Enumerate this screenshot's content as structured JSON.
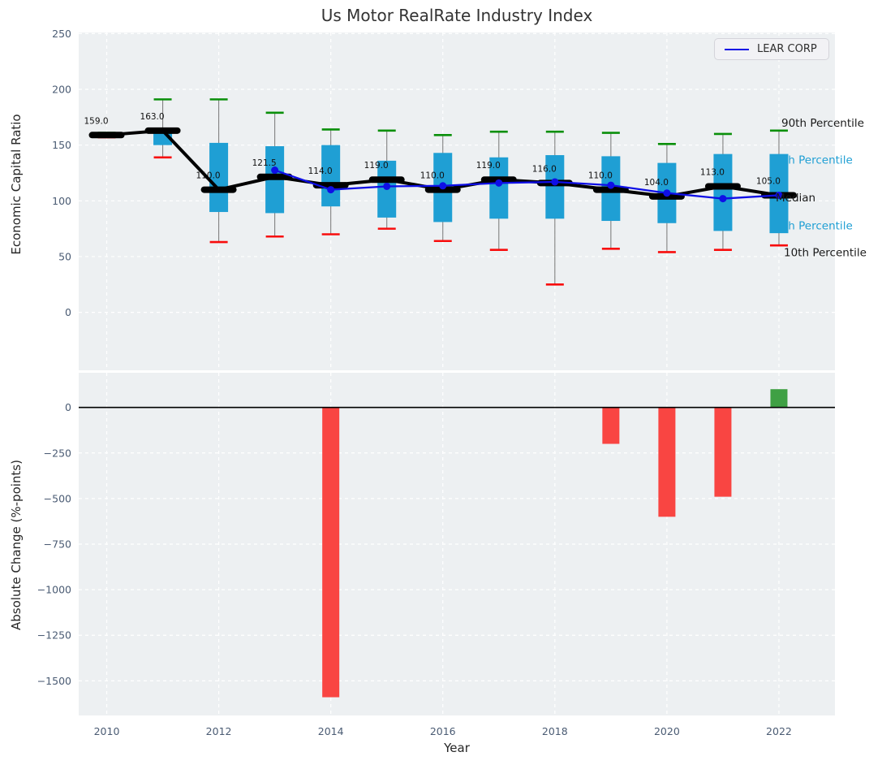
{
  "title": "Us Motor RealRate Industry Index",
  "legend": {
    "label": "LEAR CORP",
    "line_color": "#0f0fe6"
  },
  "colors": {
    "plot_bg": "#edf0f2",
    "grid": "#ffffff",
    "box_fill": "#1f9fd4",
    "cap_90": "#0a8f0a",
    "cap_10": "#f80c0c",
    "whisker": "#808080",
    "median": "#000000",
    "lear_line": "#0f0fe6",
    "bar_negative": "#f94542",
    "bar_positive": "#3fa044",
    "zero_line": "#000000",
    "tick_label": "#4a5b73",
    "percentile_label_cyan": "#1f9fd4",
    "percentile_label_black": "#1a1a1a"
  },
  "chart_data": [
    {
      "type": "boxplot+line",
      "title": "Us Motor RealRate Industry Index",
      "ylabel": "Economic Capital Ratio",
      "ylim": [
        -52,
        251
      ],
      "xlim": [
        2009.5,
        2023
      ],
      "grid": true,
      "yticks": [
        {
          "v": 0,
          "label": "0"
        },
        {
          "v": 50,
          "label": "50"
        },
        {
          "v": 100,
          "label": "100"
        },
        {
          "v": 150,
          "label": "150"
        },
        {
          "v": 200,
          "label": "200"
        },
        {
          "v": 250,
          "label": "250"
        }
      ],
      "boxes": [
        {
          "year": 2010,
          "p10": 157,
          "p25": 158,
          "median": 159,
          "p75": 160.5,
          "p90": 161,
          "label": "159.0"
        },
        {
          "year": 2011,
          "p10": 139,
          "p25": 150,
          "median": 163,
          "p75": 163,
          "p90": 191,
          "label": "163.0"
        },
        {
          "year": 2012,
          "p10": 63,
          "p25": 90,
          "median": 110,
          "p75": 152,
          "p90": 191,
          "label": "110.0"
        },
        {
          "year": 2013,
          "p10": 68,
          "p25": 89,
          "median": 121.5,
          "p75": 149,
          "p90": 179,
          "label": "121.5"
        },
        {
          "year": 2014,
          "p10": 70,
          "p25": 95,
          "median": 114,
          "p75": 150,
          "p90": 164,
          "label": "114.0"
        },
        {
          "year": 2015,
          "p10": 75,
          "p25": 85,
          "median": 119,
          "p75": 136,
          "p90": 163,
          "label": "119.0"
        },
        {
          "year": 2016,
          "p10": 64,
          "p25": 81,
          "median": 110,
          "p75": 143,
          "p90": 159,
          "label": "110.0"
        },
        {
          "year": 2017,
          "p10": 56,
          "p25": 84,
          "median": 119,
          "p75": 139,
          "p90": 162,
          "label": "119.0"
        },
        {
          "year": 2018,
          "p10": 25,
          "p25": 84,
          "median": 116,
          "p75": 141,
          "p90": 162,
          "label": "116.0"
        },
        {
          "year": 2019,
          "p10": 57,
          "p25": 82,
          "median": 110,
          "p75": 140,
          "p90": 161,
          "label": "110.0"
        },
        {
          "year": 2020,
          "p10": 54,
          "p25": 80,
          "median": 104,
          "p75": 134,
          "p90": 151,
          "label": "104.0"
        },
        {
          "year": 2021,
          "p10": 56,
          "p25": 73,
          "median": 113,
          "p75": 142,
          "p90": 160,
          "label": "113.0"
        },
        {
          "year": 2022,
          "p10": 60,
          "p25": 71,
          "median": 105,
          "p75": 142,
          "p90": 163,
          "label": "105.0"
        }
      ],
      "series": [
        {
          "name": "LEAR CORP",
          "x": [
            2013,
            2014,
            2015,
            2016,
            2017,
            2018,
            2019,
            2020,
            2021,
            2022
          ],
          "values": [
            127.5,
            110,
            113,
            113.5,
            116,
            117,
            114,
            107,
            102,
            105
          ]
        }
      ],
      "right_labels": [
        {
          "text": "90th Percentile",
          "value": 170,
          "color": "#1a1a1a",
          "x": 963
        },
        {
          "text": "th Percentile",
          "value": 137,
          "color": "#1f9fd4",
          "x": 966
        },
        {
          "text": "Median",
          "value": 103,
          "color": "#1a1a1a",
          "x": 956
        },
        {
          "text": "th Percentile",
          "value": 78,
          "color": "#1f9fd4",
          "x": 966
        },
        {
          "text": "10th Percentile",
          "value": 54,
          "color": "#1a1a1a",
          "x": 966
        }
      ],
      "legend": [
        "LEAR CORP"
      ]
    },
    {
      "type": "bar",
      "ylabel": "Absolute Change (%-points)",
      "xlabel": "Year",
      "ylim": [
        -1690,
        190
      ],
      "xlim": [
        2009.5,
        2023
      ],
      "grid": true,
      "yticks": [
        {
          "v": 0,
          "label": "0"
        },
        {
          "v": -250,
          "label": "−250"
        },
        {
          "v": -500,
          "label": "−500"
        },
        {
          "v": -750,
          "label": "−750"
        },
        {
          "v": -1000,
          "label": "−1000"
        },
        {
          "v": -1250,
          "label": "−1250"
        },
        {
          "v": -1500,
          "label": "−1500"
        }
      ],
      "xticks": [
        {
          "v": 2010,
          "label": "2010"
        },
        {
          "v": 2012,
          "label": "2012"
        },
        {
          "v": 2014,
          "label": "2014"
        },
        {
          "v": 2016,
          "label": "2016"
        },
        {
          "v": 2018,
          "label": "2018"
        },
        {
          "v": 2020,
          "label": "2020"
        },
        {
          "v": 2022,
          "label": "2022"
        }
      ],
      "categories": [
        2010,
        2011,
        2012,
        2013,
        2014,
        2015,
        2016,
        2017,
        2018,
        2019,
        2020,
        2021,
        2022
      ],
      "values": [
        0,
        0,
        0,
        0,
        -1590,
        0,
        0,
        0,
        0,
        -200,
        -600,
        -490,
        100
      ]
    }
  ]
}
